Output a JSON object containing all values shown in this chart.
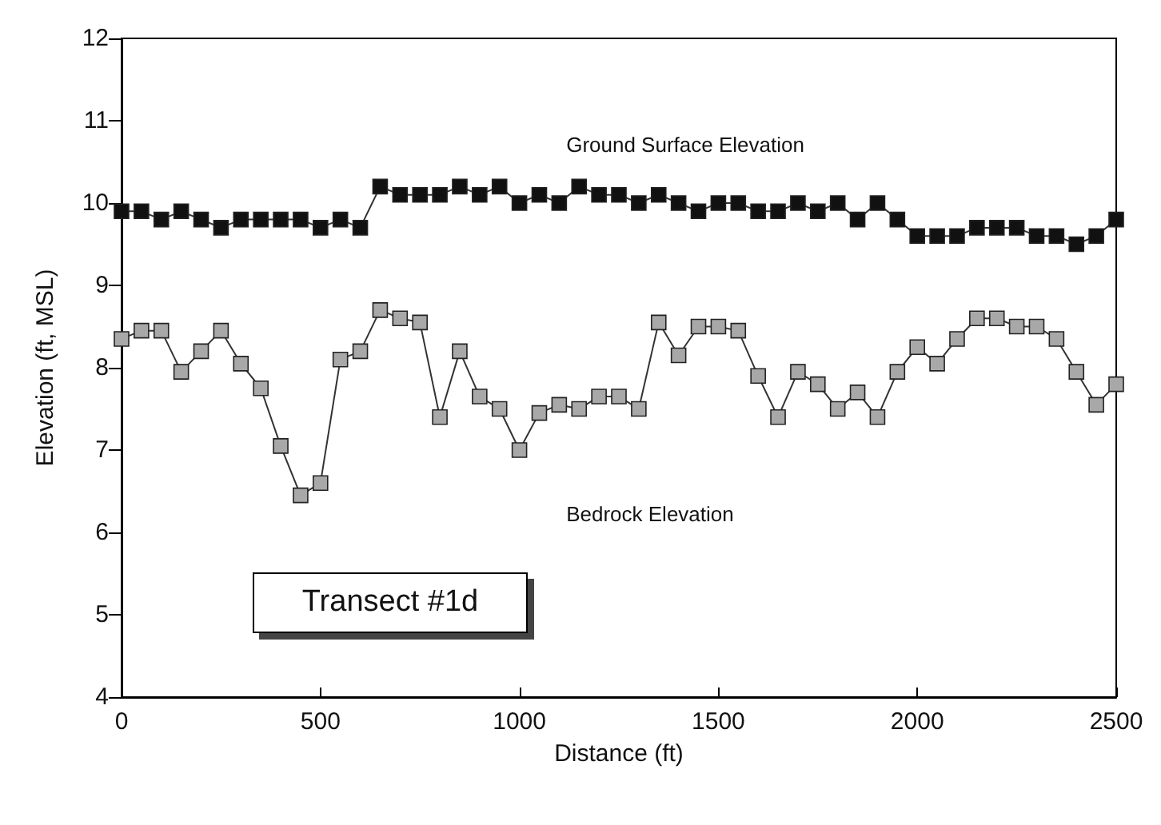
{
  "chart_data": {
    "type": "line",
    "xlabel": "Distance (ft)",
    "ylabel": "Elevation (ft, MSL)",
    "x": [
      0,
      50,
      100,
      150,
      200,
      250,
      300,
      350,
      400,
      450,
      500,
      550,
      600,
      650,
      700,
      750,
      800,
      850,
      900,
      950,
      1000,
      1050,
      1100,
      1150,
      1200,
      1250,
      1300,
      1350,
      1400,
      1450,
      1500,
      1550,
      1600,
      1650,
      1700,
      1750,
      1800,
      1850,
      1900,
      1950,
      2000,
      2050,
      2100,
      2150,
      2200,
      2250,
      2300,
      2350,
      2400,
      2450,
      2500
    ],
    "series": [
      {
        "name": "Ground Surface Elevation",
        "color": "#111111",
        "values": [
          9.9,
          9.9,
          9.8,
          9.9,
          9.8,
          9.7,
          9.8,
          9.8,
          9.8,
          9.8,
          9.7,
          9.8,
          9.7,
          10.2,
          10.1,
          10.1,
          10.1,
          10.2,
          10.1,
          10.2,
          10.0,
          10.1,
          10.0,
          10.2,
          10.1,
          10.1,
          10.0,
          10.1,
          10.0,
          9.9,
          10.0,
          10.0,
          9.9,
          9.9,
          10.0,
          9.9,
          10.0,
          9.8,
          10.0,
          9.8,
          9.6,
          9.6,
          9.6,
          9.7,
          9.7,
          9.7,
          9.6,
          9.6,
          9.5,
          9.6,
          9.8
        ]
      },
      {
        "name": "Bedrock Elevation",
        "color": "#a8a8a8",
        "values": [
          8.35,
          8.45,
          8.45,
          7.95,
          8.2,
          8.45,
          8.05,
          7.75,
          7.05,
          6.45,
          6.6,
          8.1,
          8.2,
          8.7,
          8.6,
          8.55,
          7.4,
          8.2,
          7.65,
          7.5,
          7.0,
          7.45,
          7.55,
          7.5,
          7.65,
          7.65,
          7.5,
          8.55,
          8.15,
          8.5,
          8.5,
          8.45,
          7.9,
          7.4,
          7.95,
          7.8,
          7.5,
          7.7,
          7.4,
          7.95,
          8.25,
          8.05,
          8.35,
          8.6,
          8.6,
          8.5,
          8.5,
          8.35,
          7.95,
          7.55,
          7.8
        ]
      }
    ],
    "xlim": [
      0,
      2500
    ],
    "xticks": [
      0,
      500,
      1000,
      1500,
      2000,
      2500
    ],
    "ylim": [
      4,
      12
    ],
    "yticks": [
      4,
      5,
      6,
      7,
      8,
      9,
      10,
      11,
      12
    ],
    "annotations": [
      "Transect #1d"
    ],
    "marker": "square",
    "line_style": "solid",
    "grid": false,
    "legend": false
  }
}
